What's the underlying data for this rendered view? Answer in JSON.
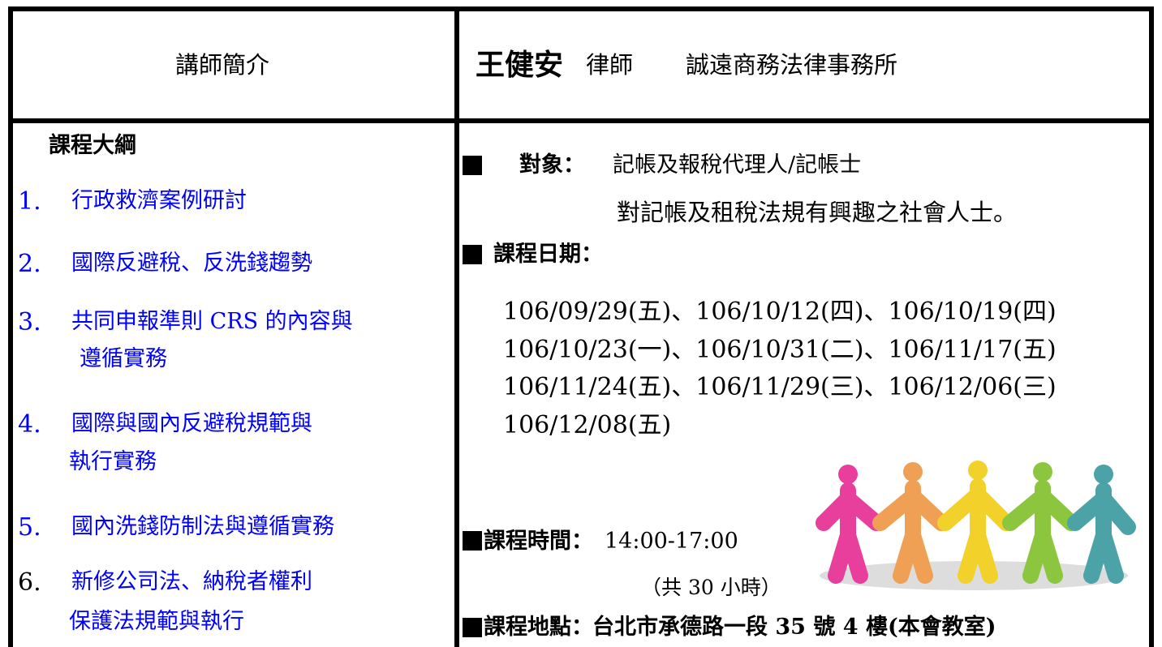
{
  "header": {
    "left": "講師簡介",
    "name": "王健安",
    "title": "律師",
    "firm": "誠遠商務法律事務所"
  },
  "outline": {
    "heading": "課程大綱",
    "items": [
      {
        "number": "1.",
        "lines": [
          "行政救濟案例研討"
        ]
      },
      {
        "number": "2.",
        "lines": [
          "國際反避稅、反洗錢趨勢"
        ]
      },
      {
        "number": "3.",
        "lines": [
          "共同申報準則 CRS 的內容與",
          "遵循實務"
        ]
      },
      {
        "number": "4.",
        "lines": [
          "國際與國內反避稅規範與",
          "執行實務"
        ]
      },
      {
        "number": "5.",
        "lines": [
          "國內洗錢防制法與遵循實務"
        ]
      },
      {
        "number": "6.",
        "lines": [
          "新修公司法、納稅者權利",
          "保護法規範與執行"
        ]
      }
    ]
  },
  "info": {
    "audience_label": "對象：",
    "audience": [
      "記帳及報稅代理人/記帳士",
      "對記帳及租稅法規有興趣之社會人士。"
    ],
    "date_label": "課程日期：",
    "dates": [
      "106/09/29(五)、106/10/12(四)、106/10/19(四)",
      "106/10/23(一)、106/10/31(二)、106/11/17(五)",
      "106/11/24(五)、106/11/29(三)、106/12/06(三)",
      "106/12/08(五)"
    ],
    "time_label": "課程時間：",
    "time": "14:00-17:00",
    "hours": "（共 30 小時）",
    "location_label": "課程地點：",
    "location": "台北市承德路一段 35 號 4 樓(本會教室)"
  }
}
